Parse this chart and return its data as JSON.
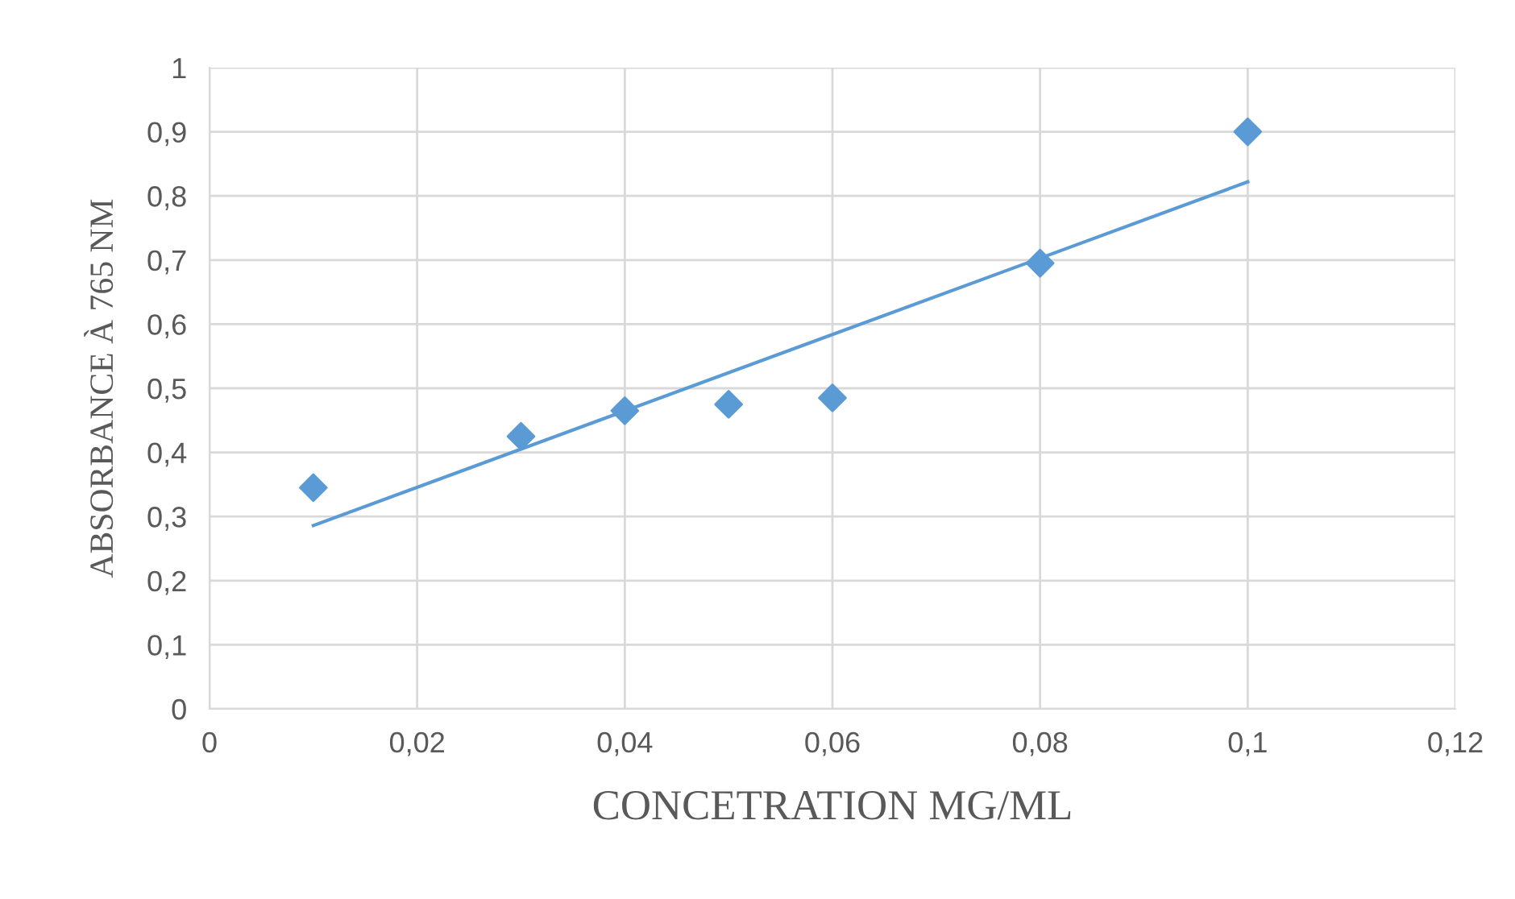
{
  "chart_data": {
    "type": "scatter",
    "xlabel": "CONCETRATION MG/ML",
    "ylabel": "ABSORBANCE À 765 NM",
    "series": [
      {
        "color": "#5b9bd5",
        "marker": "diamond",
        "x": [
          0.01,
          0.03,
          0.04,
          0.05,
          0.06,
          0.08,
          0.1
        ],
        "values": [
          0.345,
          0.425,
          0.465,
          0.475,
          0.485,
          0.695,
          0.9
        ]
      },
      {
        "type": "line",
        "color": "#5b9bd5",
        "line_style": "solid",
        "x": [
          0.01,
          0.1
        ],
        "values": [
          0.286,
          0.822
        ]
      }
    ],
    "xlim": [
      0,
      0.12
    ],
    "xticks": [
      0,
      {
        "value": 0.02,
        "label": "0,02"
      },
      {
        "value": 0.04,
        "label": "0,04"
      },
      {
        "value": 0.06,
        "label": "0,06"
      },
      {
        "value": 0.08,
        "label": "0,08"
      },
      {
        "value": 0.1,
        "label": "0,1"
      },
      {
        "value": 0.12,
        "label": "0,12"
      }
    ],
    "ylim": [
      0,
      1
    ],
    "yticks": [
      0,
      {
        "value": 0.1,
        "label": "0,1"
      },
      {
        "value": 0.2,
        "label": "0,2"
      },
      {
        "value": 0.3,
        "label": "0,3"
      },
      {
        "value": 0.4,
        "label": "0,4"
      },
      {
        "value": 0.5,
        "label": "0,5"
      },
      {
        "value": 0.6,
        "label": "0,6"
      },
      {
        "value": 0.7,
        "label": "0,7"
      },
      {
        "value": 0.8,
        "label": "0,8"
      },
      {
        "value": 0.9,
        "label": "0,9"
      },
      1
    ],
    "grid": true,
    "legend": false
  }
}
